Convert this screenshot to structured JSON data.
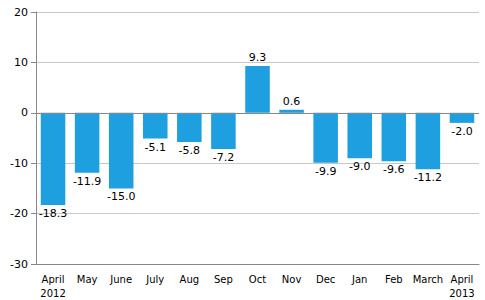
{
  "chart_data": {
    "type": "bar",
    "categories": [
      "April\n2012",
      "May",
      "June",
      "July",
      "Aug",
      "Sep",
      "Oct",
      "Nov",
      "Dec",
      "Jan",
      "Feb",
      "March",
      "April\n2013"
    ],
    "values": [
      -18.3,
      -11.9,
      -15.0,
      -5.1,
      -5.8,
      -7.2,
      9.3,
      0.6,
      -9.9,
      -9.0,
      -9.6,
      -11.2,
      -2.0
    ],
    "value_labels": [
      "-18.3",
      "-11.9",
      "-15.0",
      "-5.1",
      "-5.8",
      "-7.2",
      "9.3",
      "0.6",
      "-9.9",
      "-9.0",
      "-9.6",
      "-11.2",
      "-2.0"
    ],
    "color": "#1e9fe0",
    "ylim": [
      -30,
      20
    ],
    "yticks": [
      -30,
      -20,
      -10,
      0,
      10,
      20
    ],
    "grid": true,
    "data_labels": true
  }
}
